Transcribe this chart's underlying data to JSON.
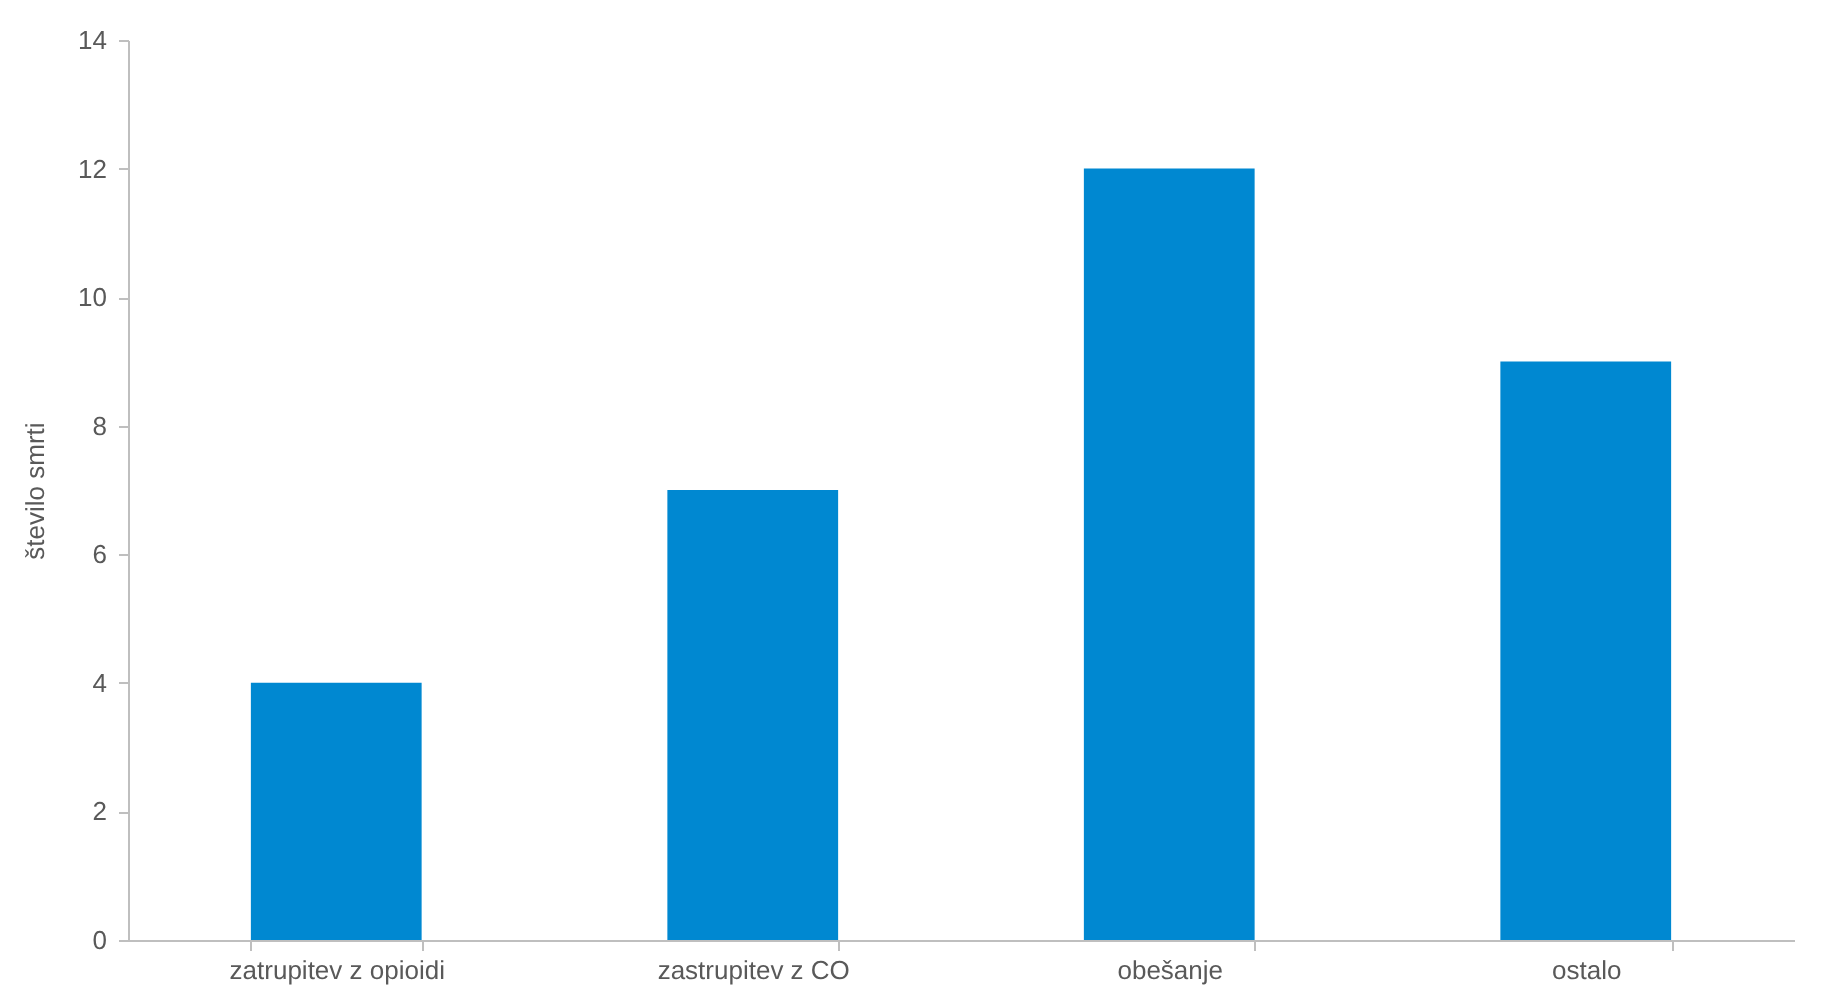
{
  "chart_data": {
    "type": "bar",
    "categories": [
      "zatrupitev z opioidi",
      "zastrupitev z CO",
      "obešanje",
      "ostalo"
    ],
    "values": [
      4,
      7,
      12,
      9
    ],
    "color": "#0088d1",
    "ylabel": "število smrti",
    "ylim": [
      0,
      14
    ],
    "yticks": [
      0,
      2,
      4,
      6,
      8,
      10,
      12,
      14
    ]
  }
}
